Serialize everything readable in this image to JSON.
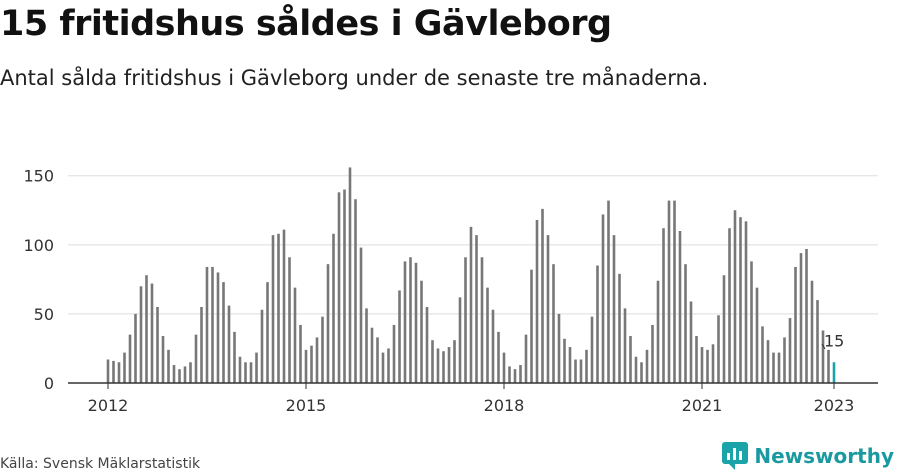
{
  "header": {
    "title": "15 fritidshus såldes i Gävleborg",
    "subtitle": "Antal sålda fritidshus i Gävleborg under de senaste tre månaderna."
  },
  "footer": {
    "source": "Källa: Svensk Mäklarstatistik",
    "brand": "Newsworthy"
  },
  "colors": {
    "bar": "#777777",
    "highlight": "#1aa3a8",
    "grid": "#dddddd"
  },
  "chart_data": {
    "type": "bar",
    "title": "15 fritidshus såldes i Gävleborg",
    "subtitle": "Antal sålda fritidshus i Gävleborg under de senaste tre månaderna.",
    "xlabel": "",
    "ylabel": "",
    "ylim": [
      0,
      165
    ],
    "yticks": [
      0,
      50,
      100,
      150
    ],
    "xticks": [
      "2012",
      "2015",
      "2018",
      "2021",
      "2023"
    ],
    "grid": true,
    "legend": "none",
    "highlight_label": "15",
    "series": [
      {
        "values": [
          17,
          16,
          15,
          22,
          35,
          50,
          70,
          78,
          72,
          55,
          34,
          24,
          13,
          10,
          12,
          15,
          35,
          55,
          84,
          84,
          80,
          73,
          56,
          37,
          19,
          15,
          15,
          22,
          53,
          73,
          107,
          108,
          111,
          91,
          69,
          42,
          24,
          27,
          33,
          48,
          86,
          108,
          138,
          140,
          156,
          133,
          98,
          54,
          40,
          33,
          22,
          25,
          42,
          67,
          88,
          91,
          87,
          74,
          55,
          31,
          25,
          23,
          26,
          31,
          62,
          91,
          113,
          107,
          91,
          69,
          53,
          37,
          22,
          12,
          10,
          13,
          35,
          82,
          118,
          126,
          107,
          86,
          50,
          32,
          26,
          17,
          17,
          24,
          48,
          85,
          122,
          132,
          107,
          79,
          54,
          34,
          19,
          15,
          24,
          42,
          74,
          112,
          132,
          132,
          110,
          86,
          59,
          34,
          26,
          24,
          28,
          49,
          78,
          112,
          125,
          120,
          117,
          88,
          69,
          41,
          31,
          22,
          22,
          33,
          47,
          84,
          94,
          97,
          74,
          60,
          38,
          24,
          15
        ]
      }
    ]
  }
}
